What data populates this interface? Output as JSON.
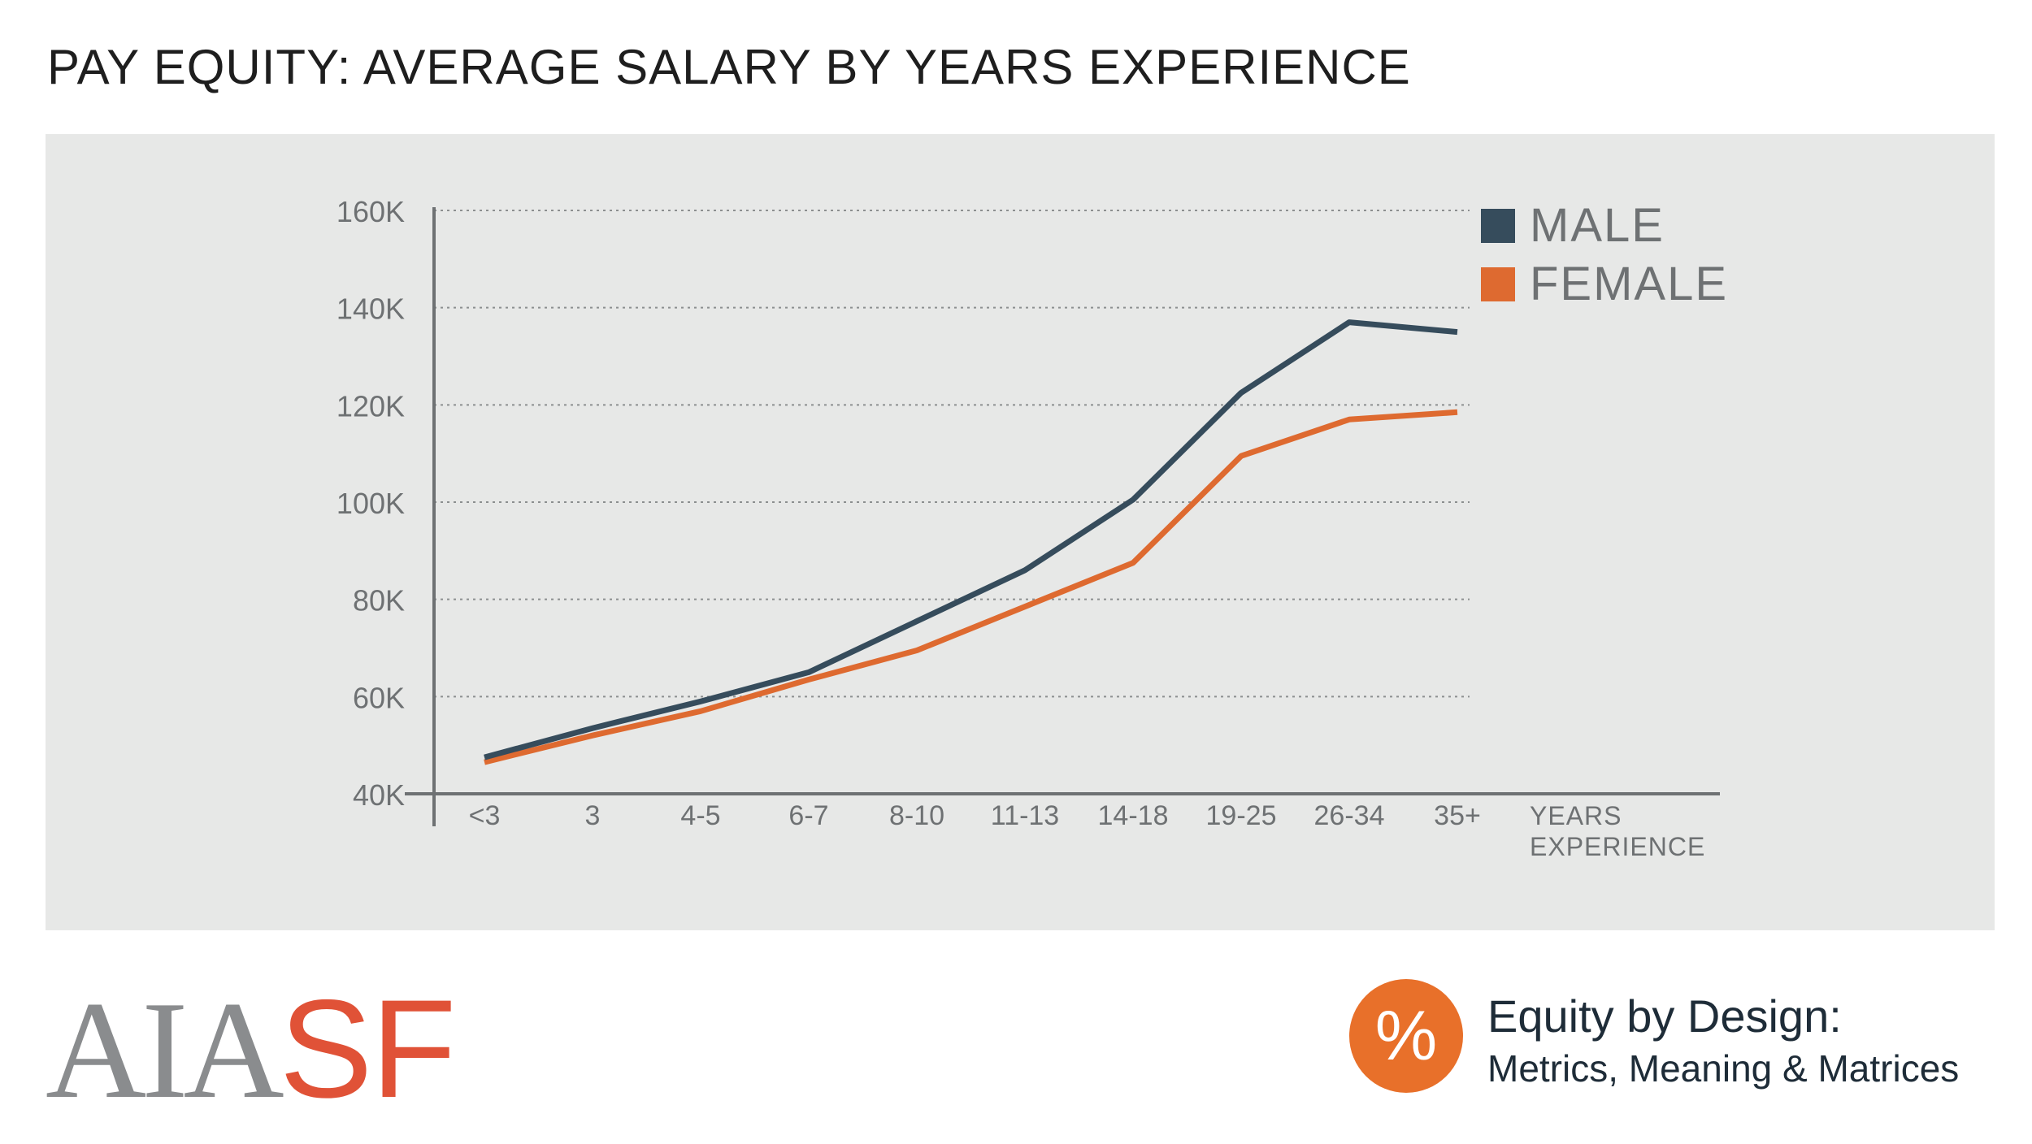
{
  "header": {
    "title": "PAY EQUITY: AVERAGE SALARY BY YEARS EXPERIENCE"
  },
  "chart_data": {
    "type": "line",
    "title": "PAY EQUITY: AVERAGE SALARY BY YEARS EXPERIENCE",
    "categories": [
      "<3",
      "3",
      "4-5",
      "6-7",
      "8-10",
      "11-13",
      "14-18",
      "19-25",
      "26-34",
      "35+"
    ],
    "xlabel": "YEARS EXPERIENCE",
    "xlabel_lines": [
      "YEARS",
      "EXPERIENCE"
    ],
    "ylabel": "",
    "ylim": [
      40000,
      160000
    ],
    "y_ticks": [
      40000,
      60000,
      80000,
      100000,
      120000,
      140000,
      160000
    ],
    "y_tick_labels": [
      "40K",
      "60K",
      "80K",
      "100K",
      "120K",
      "140K",
      "160K"
    ],
    "grid": "horizontal dotted",
    "legend_position": "top-right",
    "series": [
      {
        "name": "MALE",
        "color": "#364c5c",
        "values": [
          47500,
          53500,
          59000,
          65000,
          75500,
          86000,
          100500,
          122500,
          137000,
          135000
        ]
      },
      {
        "name": "FEMALE",
        "color": "#de6a30",
        "values": [
          46500,
          52000,
          57000,
          63500,
          69500,
          78500,
          87500,
          109500,
          117000,
          118500
        ]
      }
    ]
  },
  "footer": {
    "logo_aia": "AIA",
    "logo_sf": "SF",
    "badge_symbol": "%",
    "equity_title": "Equity by Design:",
    "equity_subtitle": "Metrics, Meaning & Matrices"
  },
  "colors": {
    "panel": "#e7e8e7",
    "male": "#364c5c",
    "female": "#de6a30",
    "logo_gray": "#8a8c8e",
    "logo_red": "#e05237",
    "badge": "#e8702a"
  }
}
